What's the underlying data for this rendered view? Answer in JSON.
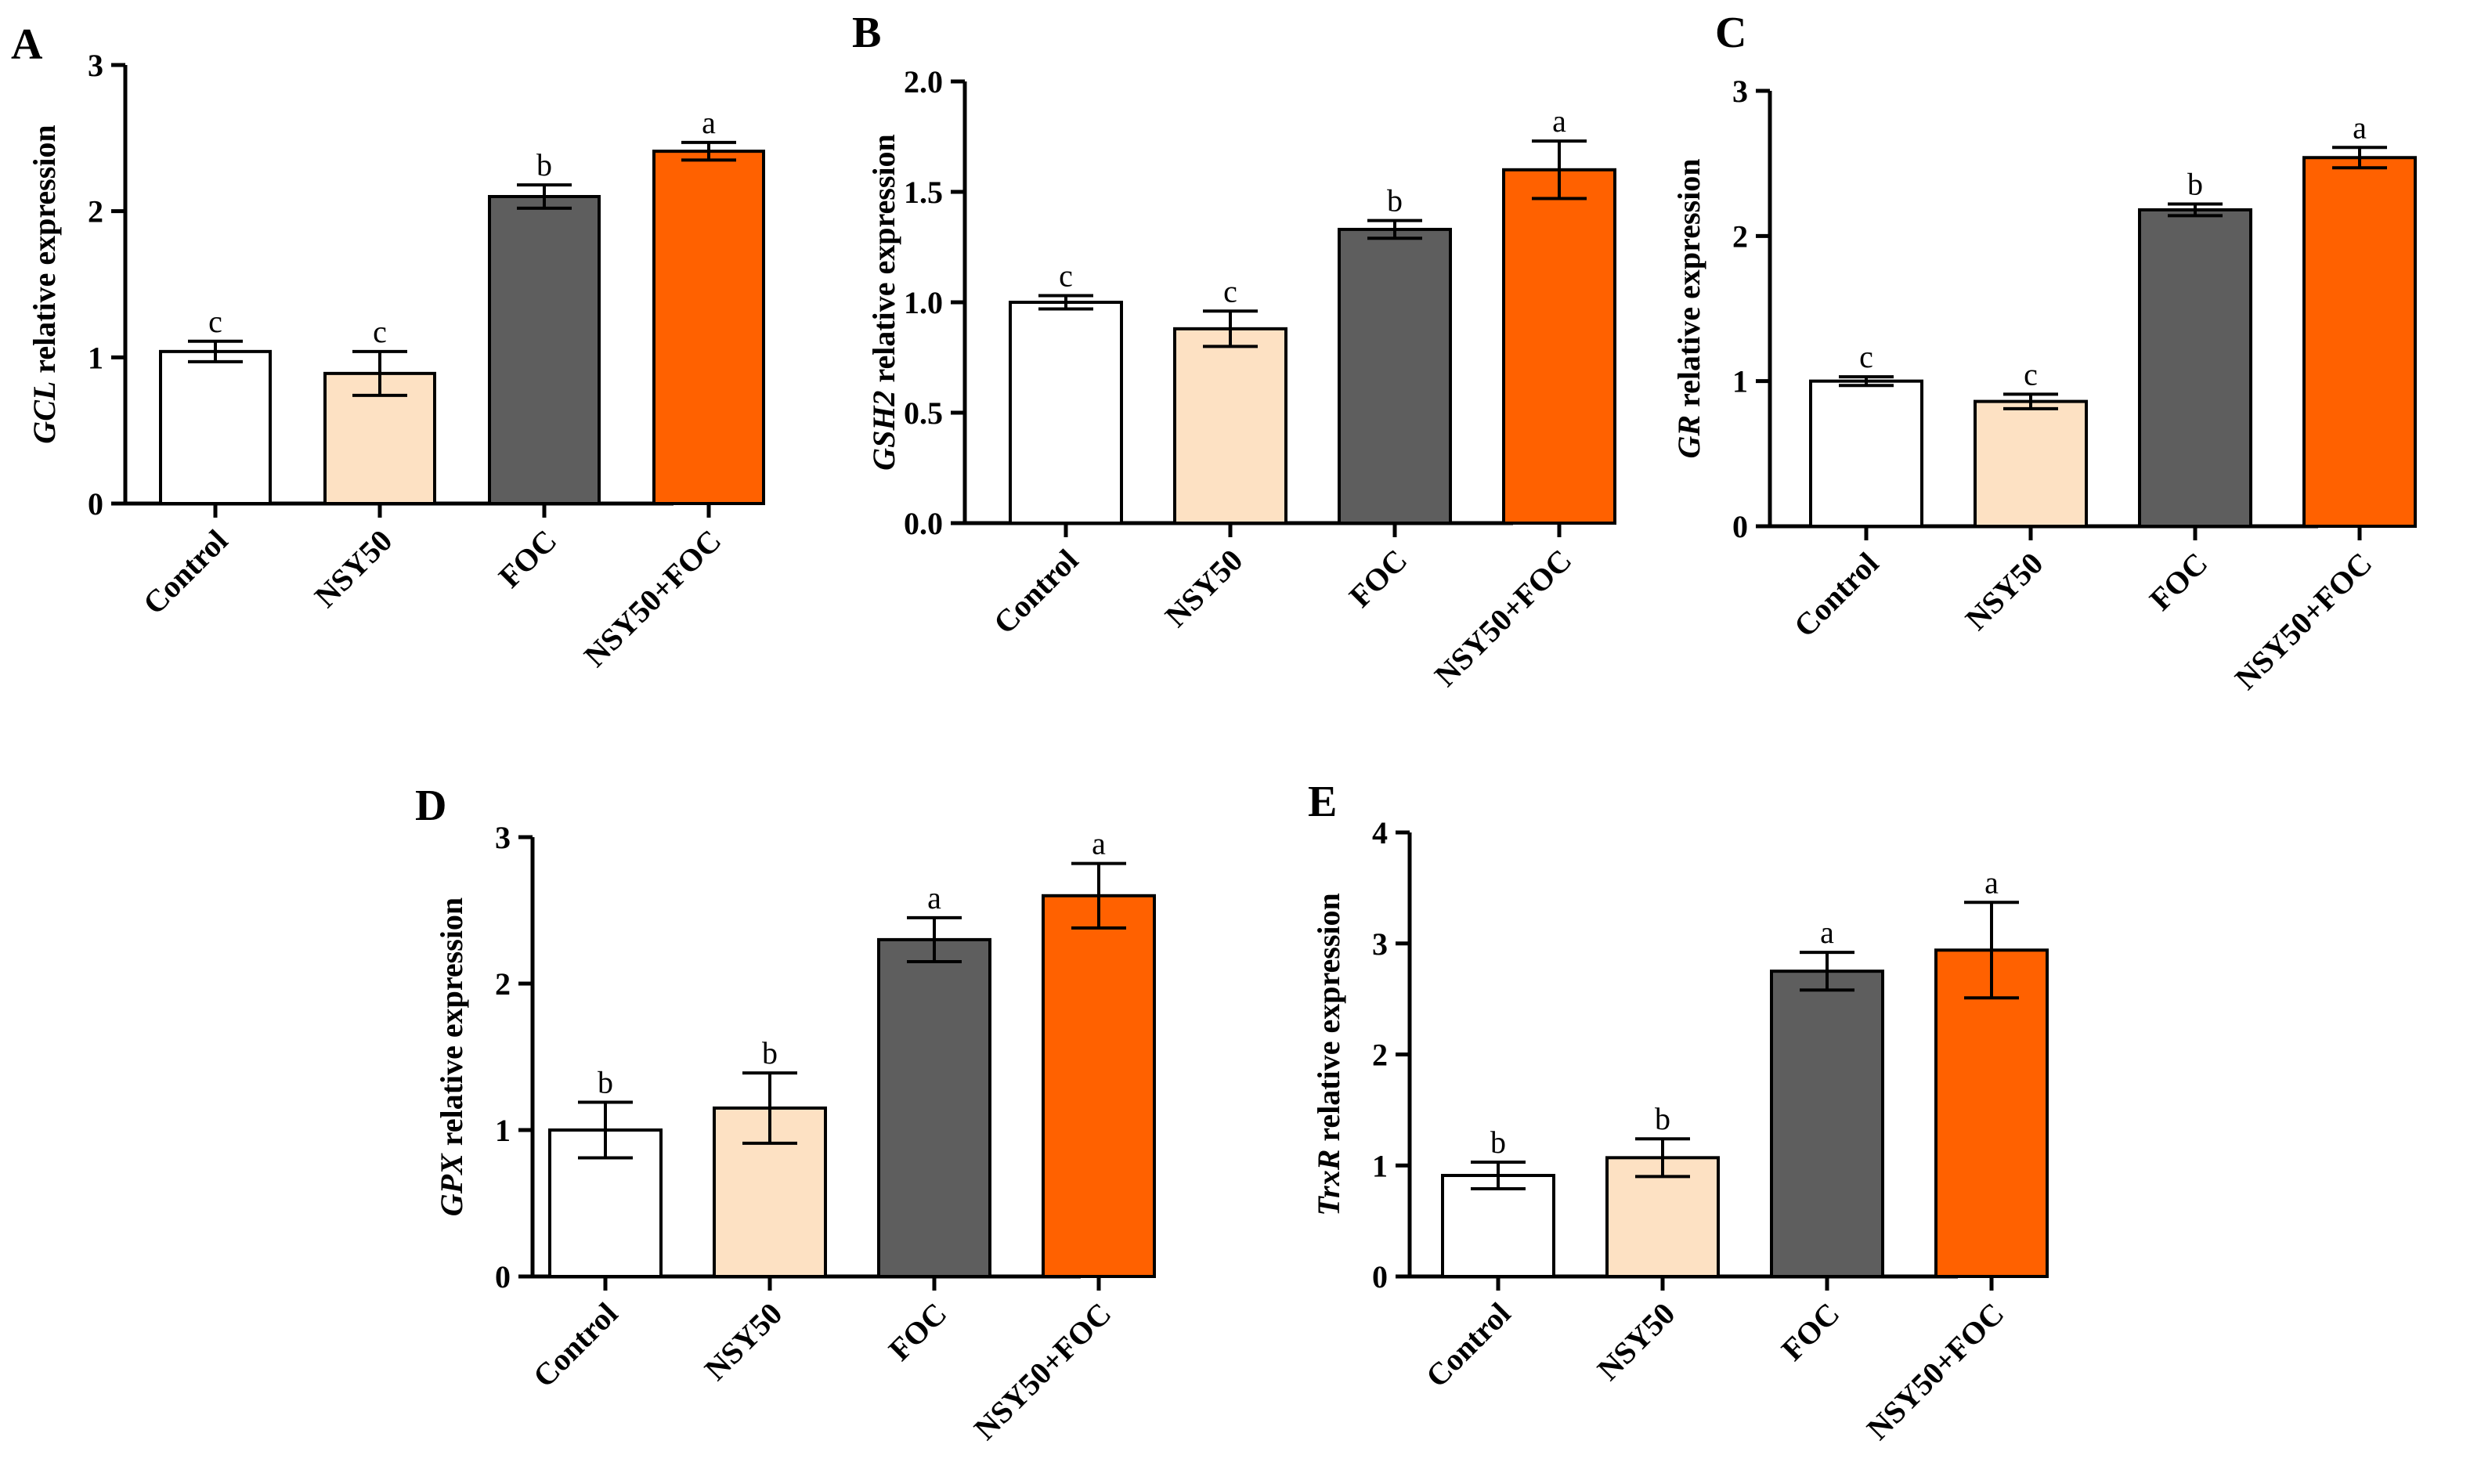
{
  "chart_data": [
    {
      "panel": "A",
      "type": "bar",
      "title": "",
      "xlabel": "",
      "ylabel": {
        "italic": "GCL",
        "rest": " relative expression"
      },
      "categories": [
        "Control",
        "NSY50",
        "FOC",
        "NSY50+FOC"
      ],
      "values": [
        1.04,
        0.89,
        2.1,
        2.41
      ],
      "errors": [
        0.07,
        0.15,
        0.08,
        0.06
      ],
      "significance": [
        "c",
        "c",
        "b",
        "a"
      ],
      "colors": [
        "#ffffff",
        "#fde1c3",
        "#5e5e5e",
        "#ff6100"
      ],
      "ylim": [
        0,
        3
      ],
      "yticks": [
        "0",
        "1",
        "2",
        "3"
      ],
      "ytick_values": [
        0,
        1,
        2,
        3
      ]
    },
    {
      "panel": "B",
      "type": "bar",
      "title": "",
      "xlabel": "",
      "ylabel": {
        "italic": "GSH2",
        "rest": " relative expression"
      },
      "categories": [
        "Control",
        "NSY50",
        "FOC",
        "NSY50+FOC"
      ],
      "values": [
        1.0,
        0.88,
        1.33,
        1.6
      ],
      "errors": [
        0.03,
        0.08,
        0.04,
        0.13
      ],
      "significance": [
        "c",
        "c",
        "b",
        "a"
      ],
      "colors": [
        "#ffffff",
        "#fde1c3",
        "#5e5e5e",
        "#ff6100"
      ],
      "ylim": [
        0,
        2.0
      ],
      "yticks": [
        "0.0",
        "0.5",
        "1.0",
        "1.5",
        "2.0"
      ],
      "ytick_values": [
        0,
        0.5,
        1.0,
        1.5,
        2.0
      ]
    },
    {
      "panel": "C",
      "type": "bar",
      "title": "",
      "xlabel": "",
      "ylabel": {
        "italic": "GR",
        "rest": " relative expression"
      },
      "categories": [
        "Control",
        "NSY50",
        "FOC",
        "NSY50+FOC"
      ],
      "values": [
        1.0,
        0.86,
        2.18,
        2.54
      ],
      "errors": [
        0.03,
        0.05,
        0.04,
        0.07
      ],
      "significance": [
        "c",
        "c",
        "b",
        "a"
      ],
      "colors": [
        "#ffffff",
        "#fde1c3",
        "#5e5e5e",
        "#ff6100"
      ],
      "ylim": [
        0,
        3
      ],
      "yticks": [
        "0",
        "1",
        "2",
        "3"
      ],
      "ytick_values": [
        0,
        1,
        2,
        3
      ]
    },
    {
      "panel": "D",
      "type": "bar",
      "title": "",
      "xlabel": "",
      "ylabel": {
        "italic": "GPX",
        "rest": " relative expression"
      },
      "categories": [
        "Control",
        "NSY50",
        "FOC",
        "NSY50+FOC"
      ],
      "values": [
        1.0,
        1.15,
        2.3,
        2.6
      ],
      "errors": [
        0.19,
        0.24,
        0.15,
        0.22
      ],
      "significance": [
        "b",
        "b",
        "a",
        "a"
      ],
      "colors": [
        "#ffffff",
        "#fde1c3",
        "#5e5e5e",
        "#ff6100"
      ],
      "ylim": [
        0,
        3
      ],
      "yticks": [
        "0",
        "1",
        "2",
        "3"
      ],
      "ytick_values": [
        0,
        1,
        2,
        3
      ]
    },
    {
      "panel": "E",
      "type": "bar",
      "title": "",
      "xlabel": "",
      "ylabel": {
        "italic": "TrxR",
        "rest": " relative expression"
      },
      "categories": [
        "Control",
        "NSY50",
        "FOC",
        "NSY50+FOC"
      ],
      "values": [
        0.91,
        1.07,
        2.75,
        2.94
      ],
      "errors": [
        0.12,
        0.17,
        0.17,
        0.43
      ],
      "significance": [
        "b",
        "b",
        "a",
        "a"
      ],
      "colors": [
        "#ffffff",
        "#fde1c3",
        "#5e5e5e",
        "#ff6100"
      ],
      "ylim": [
        0,
        4
      ],
      "yticks": [
        "0",
        "1",
        "2",
        "3",
        "4"
      ],
      "ytick_values": [
        0,
        1,
        2,
        3,
        4
      ]
    }
  ]
}
